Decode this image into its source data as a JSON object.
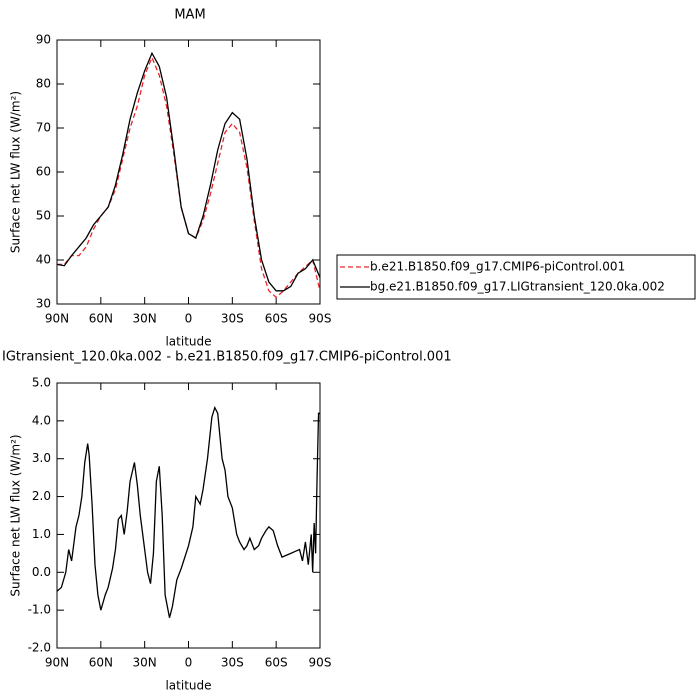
{
  "chart_data": [
    {
      "type": "line",
      "title": "MAM",
      "xlabel": "latitude",
      "ylabel": "Surface net LW flux (W/m²)",
      "x": [
        90,
        85,
        80,
        75,
        70,
        65,
        60,
        55,
        50,
        45,
        40,
        35,
        30,
        25,
        20,
        15,
        10,
        5,
        0,
        -5,
        -10,
        -15,
        -20,
        -25,
        -30,
        -35,
        -40,
        -45,
        -50,
        -55,
        -60,
        -65,
        -70,
        -75,
        -80,
        -85,
        -90
      ],
      "series": [
        {
          "name": "b.e21.B1850.f09_g17.CMIP6-piControl.001",
          "color": "#e8262b",
          "line_style": "dashed",
          "values": [
            39,
            39,
            41,
            41,
            43,
            47,
            50,
            52,
            56,
            63,
            70,
            75,
            82,
            86,
            82,
            75,
            64,
            52,
            46,
            45,
            49,
            55,
            62,
            69,
            71,
            69,
            61,
            49,
            38,
            33,
            31.5,
            33,
            35,
            37,
            38.5,
            40,
            33
          ]
        },
        {
          "name": "bg.e21.B1850.f09_g17.LIGtransient_120.0ka.002",
          "color": "#000000",
          "line_style": "solid",
          "values": [
            39,
            38.7,
            41,
            43,
            45,
            48,
            50,
            52,
            57,
            64,
            72,
            78,
            83,
            87,
            84,
            77,
            65,
            52,
            46,
            45,
            50,
            57,
            65,
            71,
            73.5,
            72,
            63,
            50,
            40,
            35,
            33,
            33,
            34,
            37,
            38,
            40,
            36
          ]
        }
      ],
      "xlim": [
        90,
        -90
      ],
      "xticks": [
        {
          "value": 90,
          "label": "90N"
        },
        {
          "value": 60,
          "label": "60N"
        },
        {
          "value": 30,
          "label": "30N"
        },
        0,
        {
          "value": -30,
          "label": "30S"
        },
        {
          "value": -60,
          "label": "60S"
        },
        {
          "value": -90,
          "label": "90S"
        }
      ],
      "ylim": [
        30,
        90
      ],
      "yticks": [
        30,
        40,
        50,
        60,
        70,
        80,
        90
      ],
      "legend": "outside right"
    },
    {
      "type": "line",
      "title": "IGtransient_120.0ka.002 - b.e21.B1850.f09_g17.CMIP6-piControl.001",
      "xlabel": "latitude",
      "ylabel": "Surface net LW flux (W/m²)",
      "x": [
        90,
        87,
        84,
        82,
        80,
        77,
        75,
        73,
        71,
        69,
        68,
        66,
        64,
        62,
        60,
        57,
        55,
        52,
        50,
        48,
        46,
        44,
        42,
        40,
        37,
        35,
        33,
        30,
        28,
        26,
        24,
        22,
        20,
        18,
        16,
        13,
        11,
        8,
        5,
        0,
        -3,
        -5,
        -8,
        -10,
        -13,
        -16,
        -18,
        -20,
        -23,
        -25,
        -27,
        -30,
        -33,
        -35,
        -38,
        -40,
        -42,
        -45,
        -48,
        -50,
        -53,
        -55,
        -58,
        -61,
        -64,
        -67,
        -70,
        -73,
        -76,
        -78,
        -80,
        -82,
        -84,
        -85,
        -86,
        -87,
        -88,
        -89,
        -90
      ],
      "color": "#000000",
      "values": [
        -0.5,
        -0.4,
        0,
        0.6,
        0.3,
        1.2,
        1.5,
        2,
        2.9,
        3.4,
        3.1,
        1.8,
        0.2,
        -0.6,
        -1.0,
        -0.6,
        -0.4,
        0.1,
        0.6,
        1.4,
        1.5,
        1.0,
        1.6,
        2.4,
        2.9,
        2.3,
        1.5,
        0.6,
        0.0,
        -0.3,
        0.5,
        2.4,
        2.8,
        1.5,
        -0.6,
        -1.2,
        -0.9,
        -0.2,
        0.1,
        0.7,
        1.2,
        2.0,
        1.8,
        2.2,
        3.0,
        4.1,
        4.35,
        4.2,
        3.0,
        2.7,
        2.0,
        1.7,
        1.0,
        0.8,
        0.6,
        0.7,
        0.9,
        0.6,
        0.7,
        0.9,
        1.1,
        1.2,
        1.1,
        0.7,
        0.4,
        0.45,
        0.5,
        0.55,
        0.6,
        0.3,
        0.8,
        0.2,
        1.0,
        0.0,
        1.3,
        0.5,
        2.5,
        4.2,
        4.2
      ],
      "xlim": [
        90,
        -90
      ],
      "xticks": [
        {
          "value": 90,
          "label": "90N"
        },
        {
          "value": 60,
          "label": "60N"
        },
        {
          "value": 30,
          "label": "30N"
        },
        0,
        {
          "value": -30,
          "label": "30S"
        },
        {
          "value": -60,
          "label": "60S"
        },
        {
          "value": -90,
          "label": "90S"
        }
      ],
      "ylim": [
        -2,
        5
      ],
      "yticks": [
        {
          "value": -2,
          "label": "-2.0"
        },
        {
          "value": -1,
          "label": "-1.0"
        },
        {
          "value": 0,
          "label": "0.0"
        },
        {
          "value": 1,
          "label": "1.0"
        },
        {
          "value": 2,
          "label": "2.0"
        },
        {
          "value": 3,
          "label": "3.0"
        },
        {
          "value": 4,
          "label": "4.0"
        },
        {
          "value": 5,
          "label": "5.0"
        }
      ]
    }
  ]
}
